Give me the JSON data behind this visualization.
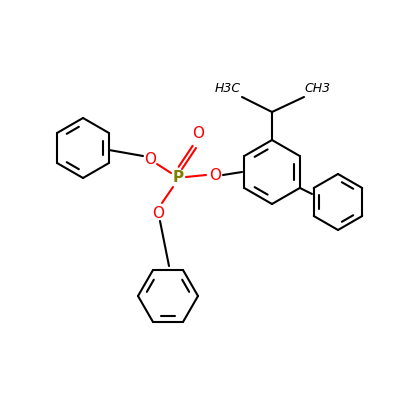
{
  "background_color": "#ffffff",
  "bond_color": "#000000",
  "phosphorus_color": "#808000",
  "oxygen_color": "#ff0000",
  "text_color": "#000000",
  "p_label": "P",
  "o_label": "O",
  "double_o_label": "O",
  "h3c_label": "H3C",
  "ch3_label": "CH3",
  "fig_width": 4.0,
  "fig_height": 4.0,
  "dpi": 100,
  "lw": 1.5
}
